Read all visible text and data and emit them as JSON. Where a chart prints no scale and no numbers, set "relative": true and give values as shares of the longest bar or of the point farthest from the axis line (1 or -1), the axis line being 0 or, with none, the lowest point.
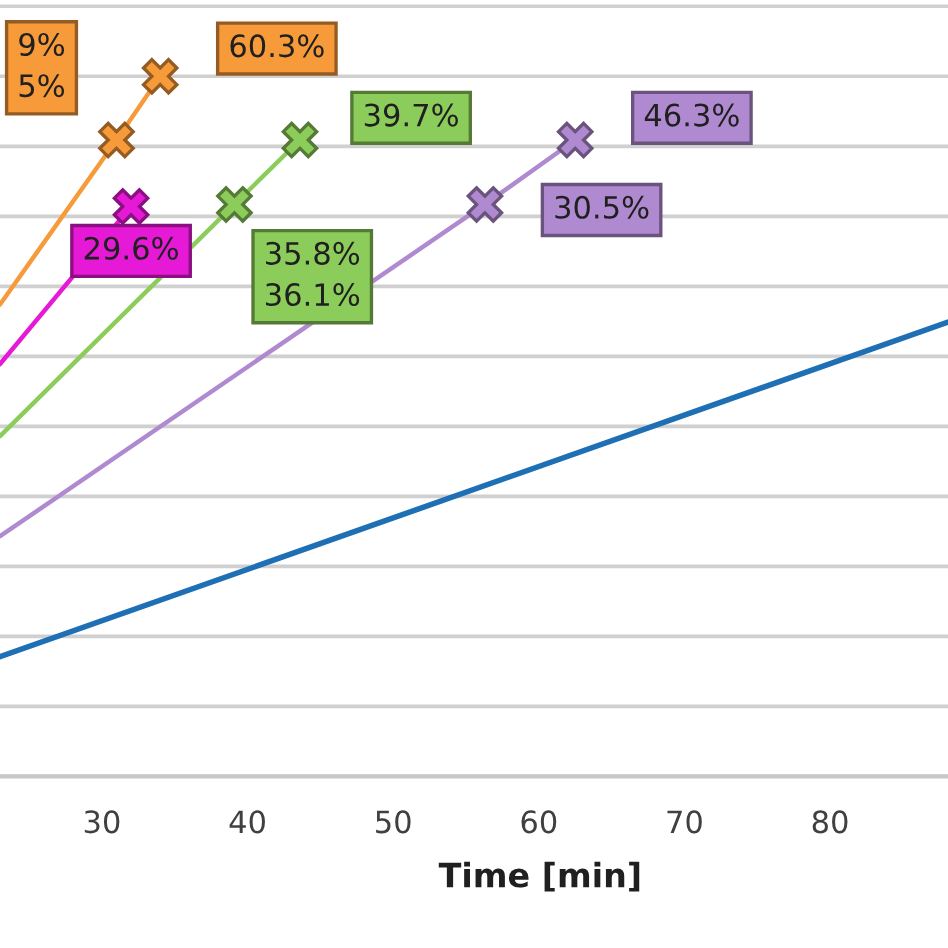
{
  "chart_data": {
    "type": "line",
    "relative": true,
    "xlabel": "Time [min]",
    "xlim": [
      23.0,
      88.1
    ],
    "xticks": [
      30,
      40,
      50,
      60,
      70,
      80
    ],
    "grid": "y",
    "marker": "cross",
    "line_style": "solid",
    "series": [
      {
        "color": "#1f6fb5",
        "x": [
          23.0,
          88.1
        ],
        "values": [
          0.171,
          0.649
        ],
        "marker": "none"
      },
      {
        "color": "#f79a3a",
        "x": [
          23.0,
          31.0,
          34.0
        ],
        "values": [
          0.674,
          0.909,
          1.0
        ]
      },
      {
        "color": "#e619d6",
        "x": [
          23.0,
          32.0
        ],
        "values": [
          0.589,
          0.814
        ]
      },
      {
        "color": "#8ccc5a",
        "x": [
          23.0,
          39.1,
          43.6
        ],
        "values": [
          0.486,
          0.817,
          0.909
        ]
      },
      {
        "color": "#b08ad0",
        "x": [
          23.0,
          56.3,
          62.5
        ],
        "values": [
          0.343,
          0.817,
          0.909
        ]
      }
    ],
    "annotations": [
      {
        "text": "9%\n5%",
        "x": 31.0,
        "y": 0.909
      },
      {
        "text": "60.3%",
        "x": 34.0,
        "y": 1.0
      },
      {
        "text": "29.6%",
        "x": 32.0,
        "y": 0.814
      },
      {
        "text": "35.8%\n36.1%",
        "x": 39.1,
        "y": 0.817
      },
      {
        "text": "39.7%",
        "x": 43.6,
        "y": 0.909
      },
      {
        "text": "30.5%",
        "x": 56.3,
        "y": 0.817
      },
      {
        "text": "46.3%",
        "x": 62.5,
        "y": 0.909
      }
    ]
  }
}
